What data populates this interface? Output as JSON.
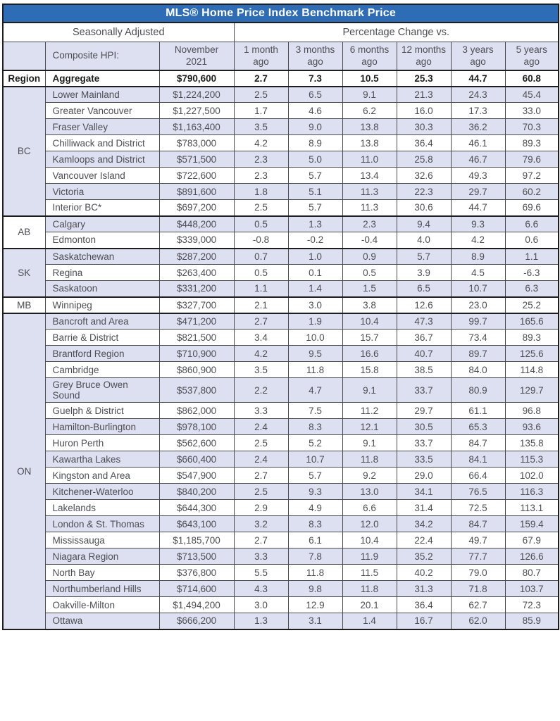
{
  "chart_data": {
    "type": "table",
    "title": "MLS® Home Price Index Benchmark Price",
    "section_headers": {
      "left": "Seasonally Adjusted",
      "right": "Percentage Change vs."
    },
    "columns": [
      "Region",
      "Composite HPI:",
      "November 2021",
      "1 month ago",
      "3 months ago",
      "6 months ago",
      "12 months ago",
      "3 years ago",
      "5 years ago"
    ],
    "aggregate_row": {
      "region": "Region",
      "name": "Aggregate",
      "price": "$790,600",
      "changes": [
        "2.7",
        "7.3",
        "10.5",
        "25.3",
        "44.7",
        "60.8"
      ]
    },
    "groups": [
      {
        "region": "BC",
        "rows": [
          {
            "name": "Lower Mainland",
            "price": "$1,224,200",
            "changes": [
              "2.5",
              "6.5",
              "9.1",
              "21.3",
              "24.3",
              "45.4"
            ]
          },
          {
            "name": "Greater Vancouver",
            "price": "$1,227,500",
            "changes": [
              "1.7",
              "4.6",
              "6.2",
              "16.0",
              "17.3",
              "33.0"
            ]
          },
          {
            "name": "Fraser Valley",
            "price": "$1,163,400",
            "changes": [
              "3.5",
              "9.0",
              "13.8",
              "30.3",
              "36.2",
              "70.3"
            ]
          },
          {
            "name": "Chilliwack and District",
            "price": "$783,000",
            "changes": [
              "4.2",
              "8.9",
              "13.8",
              "36.4",
              "46.1",
              "89.3"
            ]
          },
          {
            "name": "Kamloops and District",
            "price": "$571,500",
            "changes": [
              "2.3",
              "5.0",
              "11.0",
              "25.8",
              "46.7",
              "79.6"
            ]
          },
          {
            "name": "Vancouver Island",
            "price": "$722,600",
            "changes": [
              "2.3",
              "5.7",
              "13.4",
              "32.6",
              "49.3",
              "97.2"
            ]
          },
          {
            "name": "Victoria",
            "price": "$891,600",
            "changes": [
              "1.8",
              "5.1",
              "11.3",
              "22.3",
              "29.7",
              "60.2"
            ]
          },
          {
            "name": "Interior BC*",
            "price": "$697,200",
            "changes": [
              "2.5",
              "5.7",
              "11.3",
              "30.6",
              "44.7",
              "69.6"
            ]
          }
        ]
      },
      {
        "region": "AB",
        "rows": [
          {
            "name": "Calgary",
            "price": "$448,200",
            "changes": [
              "0.5",
              "1.3",
              "2.3",
              "9.4",
              "9.3",
              "6.6"
            ]
          },
          {
            "name": "Edmonton",
            "price": "$339,000",
            "changes": [
              "-0.8",
              "-0.2",
              "-0.4",
              "4.0",
              "4.2",
              "0.6"
            ]
          }
        ]
      },
      {
        "region": "SK",
        "rows": [
          {
            "name": "Saskatchewan",
            "price": "$287,200",
            "changes": [
              "0.7",
              "1.0",
              "0.9",
              "5.7",
              "8.9",
              "1.1"
            ]
          },
          {
            "name": "Regina",
            "price": "$263,400",
            "changes": [
              "0.5",
              "0.1",
              "0.5",
              "3.9",
              "4.5",
              "-6.3"
            ]
          },
          {
            "name": "Saskatoon",
            "price": "$331,200",
            "changes": [
              "1.1",
              "1.4",
              "1.5",
              "6.5",
              "10.7",
              "6.3"
            ]
          }
        ]
      },
      {
        "region": "MB",
        "rows": [
          {
            "name": "Winnipeg",
            "price": "$327,700",
            "changes": [
              "2.1",
              "3.0",
              "3.8",
              "12.6",
              "23.0",
              "25.2"
            ]
          }
        ]
      },
      {
        "region": "ON",
        "rows": [
          {
            "name": "Bancroft and Area",
            "price": "$471,200",
            "changes": [
              "2.7",
              "1.9",
              "10.4",
              "47.3",
              "99.7",
              "165.6"
            ]
          },
          {
            "name": "Barrie & District",
            "price": "$821,500",
            "changes": [
              "3.4",
              "10.0",
              "15.7",
              "36.7",
              "73.4",
              "89.3"
            ]
          },
          {
            "name": "Brantford Region",
            "price": "$710,900",
            "changes": [
              "4.2",
              "9.5",
              "16.6",
              "40.7",
              "89.7",
              "125.6"
            ]
          },
          {
            "name": "Cambridge",
            "price": "$860,900",
            "changes": [
              "3.5",
              "11.8",
              "15.8",
              "38.5",
              "84.0",
              "114.8"
            ]
          },
          {
            "name": "Grey Bruce Owen Sound",
            "price": "$537,800",
            "changes": [
              "2.2",
              "4.7",
              "9.1",
              "33.7",
              "80.9",
              "129.7"
            ]
          },
          {
            "name": "Guelph & District",
            "price": "$862,000",
            "changes": [
              "3.3",
              "7.5",
              "11.2",
              "29.7",
              "61.1",
              "96.8"
            ]
          },
          {
            "name": "Hamilton-Burlington",
            "price": "$978,100",
            "changes": [
              "2.4",
              "8.3",
              "12.1",
              "30.5",
              "65.3",
              "93.6"
            ]
          },
          {
            "name": "Huron Perth",
            "price": "$562,600",
            "changes": [
              "2.5",
              "5.2",
              "9.1",
              "33.7",
              "84.7",
              "135.8"
            ]
          },
          {
            "name": "Kawartha Lakes",
            "price": "$660,400",
            "changes": [
              "2.4",
              "10.7",
              "11.8",
              "33.5",
              "84.1",
              "115.3"
            ]
          },
          {
            "name": "Kingston and Area",
            "price": "$547,900",
            "changes": [
              "2.7",
              "5.7",
              "9.2",
              "29.0",
              "66.4",
              "102.0"
            ]
          },
          {
            "name": "Kitchener-Waterloo",
            "price": "$840,200",
            "changes": [
              "2.5",
              "9.3",
              "13.0",
              "34.1",
              "76.5",
              "116.3"
            ]
          },
          {
            "name": "Lakelands",
            "price": "$644,300",
            "changes": [
              "2.9",
              "4.9",
              "6.6",
              "31.4",
              "72.5",
              "113.1"
            ]
          },
          {
            "name": "London & St. Thomas",
            "price": "$643,100",
            "changes": [
              "3.2",
              "8.3",
              "12.0",
              "34.2",
              "84.7",
              "159.4"
            ]
          },
          {
            "name": "Mississauga",
            "price": "$1,185,700",
            "changes": [
              "2.7",
              "6.1",
              "10.4",
              "22.4",
              "49.7",
              "67.9"
            ]
          },
          {
            "name": "Niagara Region",
            "price": "$713,500",
            "changes": [
              "3.3",
              "7.8",
              "11.9",
              "35.2",
              "77.7",
              "126.6"
            ]
          },
          {
            "name": "North Bay",
            "price": "$376,800",
            "changes": [
              "5.5",
              "11.8",
              "11.5",
              "40.2",
              "79.0",
              "80.7"
            ]
          },
          {
            "name": "Northumberland Hills",
            "price": "$714,600",
            "changes": [
              "4.3",
              "9.8",
              "11.8",
              "31.3",
              "71.8",
              "103.7"
            ]
          },
          {
            "name": "Oakville-Milton",
            "price": "$1,494,200",
            "changes": [
              "3.0",
              "12.9",
              "20.1",
              "36.4",
              "62.7",
              "72.3"
            ]
          },
          {
            "name": "Ottawa",
            "price": "$666,200",
            "changes": [
              "1.3",
              "3.1",
              "1.4",
              "16.7",
              "62.0",
              "85.9"
            ]
          }
        ]
      }
    ]
  },
  "colors": {
    "title_bg": "#2e6cb5",
    "title_text": "#ffffff",
    "header_bg": "#dce0f1",
    "row_alt_bg": "#dce0f1",
    "row_bg": "#ffffff",
    "border_heavy": "#1d1d1f",
    "border_light": "#4a4b4f",
    "text": "#4d4e53",
    "text_bold": "#1d1d1f"
  }
}
